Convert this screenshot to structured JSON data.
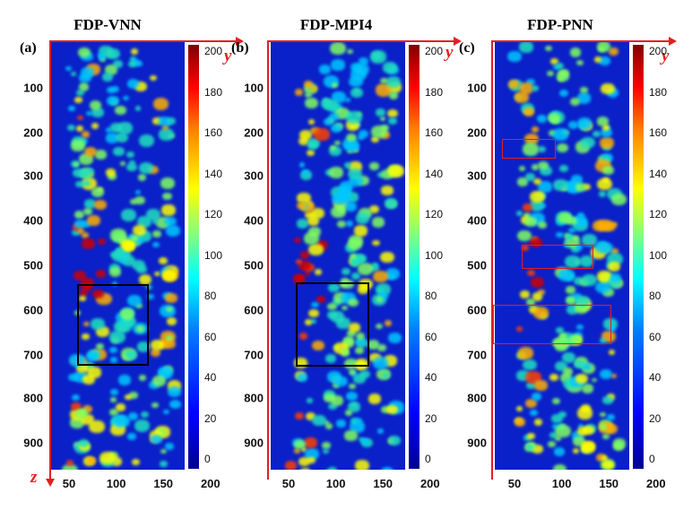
{
  "panels": [
    {
      "letter": "(a)",
      "title": "FDP-VNN"
    },
    {
      "letter": "(b)",
      "title": "FDP-MPI4"
    },
    {
      "letter": "(c)",
      "title": "FDP-PNN"
    }
  ],
  "axes": {
    "y_label": "y",
    "z_label": "z",
    "z_ticks": [
      "100",
      "200",
      "300",
      "400",
      "500",
      "600",
      "700",
      "800",
      "900"
    ],
    "y_ticks": [
      "50",
      "100",
      "150",
      "200"
    ]
  },
  "colorbar": {
    "ticks": [
      "200",
      "180",
      "160",
      "140",
      "120",
      "100",
      "80",
      "60",
      "40",
      "20",
      "0"
    ],
    "colormap": "jet"
  },
  "colors": {
    "axis_arrow": "#e02020",
    "black_box": "#000000",
    "red_box": "#e02020"
  }
}
